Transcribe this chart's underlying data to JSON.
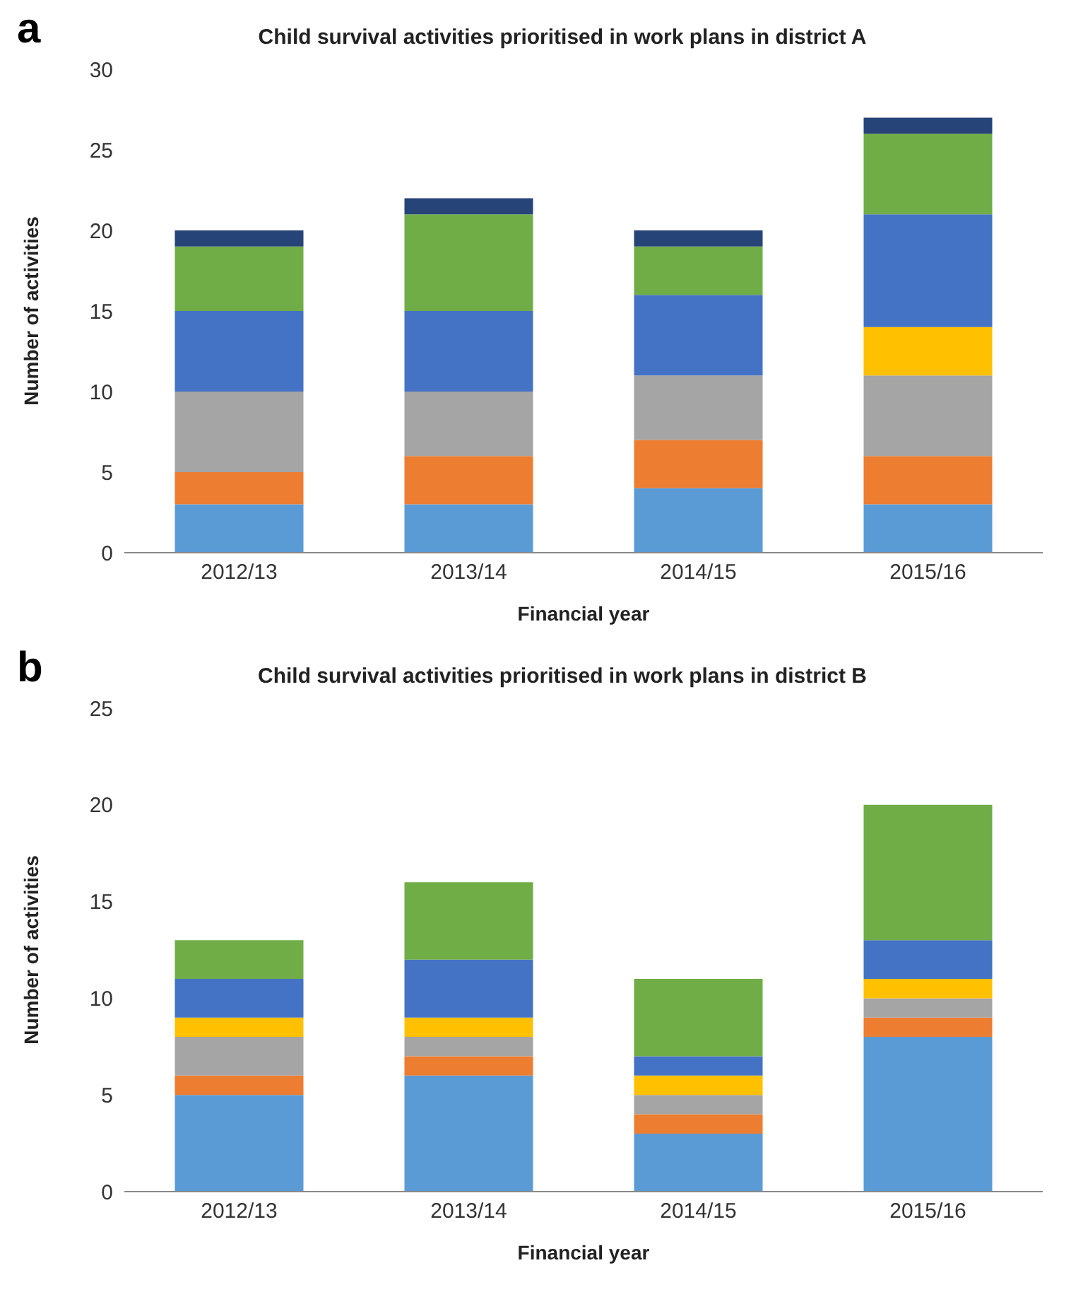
{
  "chart_data": [
    {
      "type": "bar",
      "stacked": true,
      "title": "Child survival activities prioritised in work plans in district A",
      "annotations": [
        "a"
      ],
      "xlabel": "Financial year",
      "ylabel": "Number of activities",
      "categories": [
        "2012/13",
        "2013/14",
        "2014/15",
        "2015/16"
      ],
      "ylim": [
        0,
        30
      ],
      "yticks": [
        0,
        5,
        10,
        15,
        20,
        25,
        30
      ],
      "grid": false,
      "series": [
        {
          "color": "#5b9bd5",
          "values": [
            3,
            3,
            4,
            3
          ]
        },
        {
          "color": "#ed7d31",
          "values": [
            2,
            3,
            3,
            3
          ]
        },
        {
          "color": "#a5a5a5",
          "values": [
            5,
            4,
            4,
            5
          ]
        },
        {
          "color": "#ffc000",
          "values": [
            0,
            0,
            0,
            3
          ]
        },
        {
          "color": "#4472c4",
          "values": [
            5,
            5,
            5,
            7
          ]
        },
        {
          "color": "#70ad47",
          "values": [
            4,
            6,
            3,
            5
          ]
        },
        {
          "color": "#264478",
          "values": [
            1,
            1,
            1,
            1
          ]
        }
      ]
    },
    {
      "type": "bar",
      "stacked": true,
      "title": "Child survival activities prioritised in work plans in district B",
      "annotations": [
        "b"
      ],
      "xlabel": "Financial year",
      "ylabel": "Number of activities",
      "categories": [
        "2012/13",
        "2013/14",
        "2014/15",
        "2015/16"
      ],
      "ylim": [
        0,
        25
      ],
      "yticks": [
        0,
        5,
        10,
        15,
        20,
        25
      ],
      "grid": false,
      "series": [
        {
          "color": "#5b9bd5",
          "values": [
            5,
            6,
            3,
            8
          ]
        },
        {
          "color": "#ed7d31",
          "values": [
            1,
            1,
            1,
            1
          ]
        },
        {
          "color": "#a5a5a5",
          "values": [
            2,
            1,
            1,
            1
          ]
        },
        {
          "color": "#ffc000",
          "values": [
            1,
            1,
            1,
            1
          ]
        },
        {
          "color": "#4472c4",
          "values": [
            2,
            3,
            1,
            2
          ]
        },
        {
          "color": "#70ad47",
          "values": [
            2,
            4,
            4,
            7
          ]
        }
      ]
    }
  ]
}
